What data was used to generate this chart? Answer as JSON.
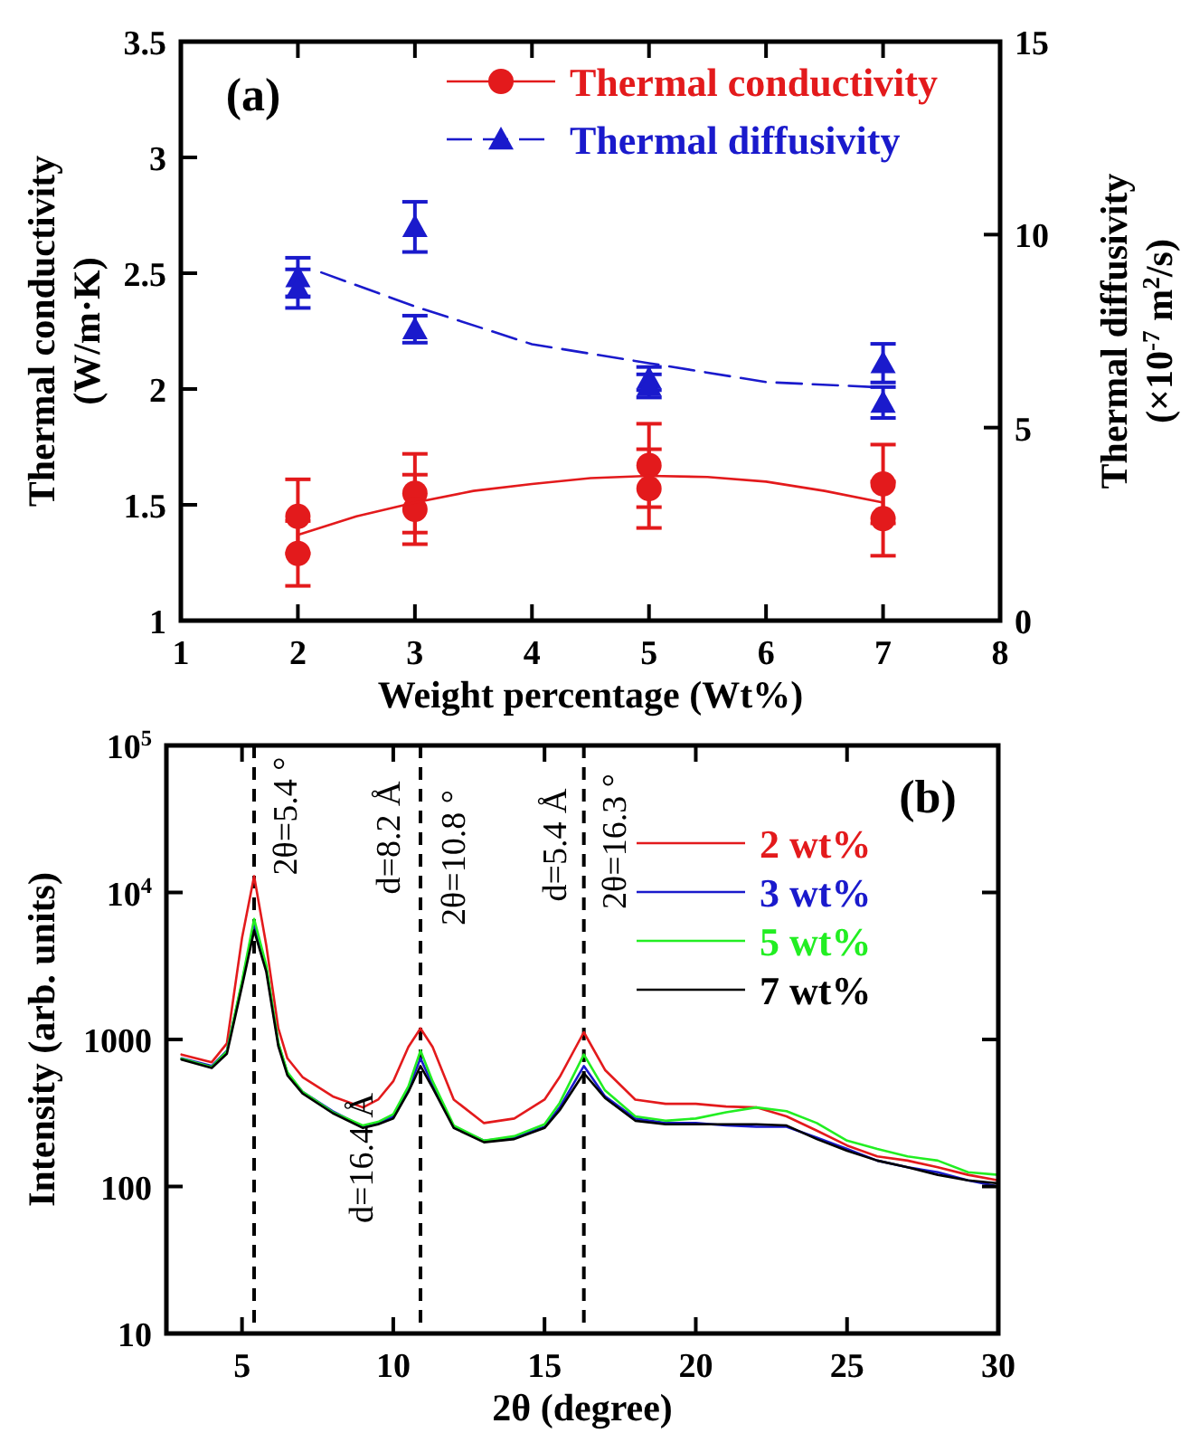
{
  "chart_data": [
    {
      "type": "scatter",
      "xlabel": "Weight percentage (Wt%)",
      "ylabel": "Thermal conductivity (W/m·K)",
      "y2label": "Thermal diffusivity (×10$^{-7}$ m$^{2}$/s)",
      "xlim": [
        1,
        8
      ],
      "xticks": [
        1,
        2,
        3,
        4,
        5,
        6,
        7,
        8
      ],
      "ylim": [
        1,
        3.5
      ],
      "yticks": [
        1,
        1.5,
        2,
        2.5,
        3,
        3.5
      ],
      "y2lim": [
        0,
        15
      ],
      "y2ticks": [
        0,
        5,
        10,
        15
      ],
      "legend": "top right",
      "grid": false,
      "annotations": [
        "(a)"
      ],
      "series": [
        {
          "name": "Thermal conductivity",
          "marker": "circle",
          "color": "#e31a1c",
          "x": [
            2,
            2,
            3,
            3,
            5,
            5,
            7,
            7
          ],
          "values": [
            1.45,
            1.29,
            1.55,
            1.48,
            1.67,
            1.57,
            1.59,
            1.44
          ],
          "errors": [
            0.16,
            0.14,
            0.17,
            0.15,
            0.18,
            0.17,
            0.17,
            0.16
          ]
        },
        {
          "type": "line",
          "marker": "none",
          "line_style": "solid",
          "color": "#e31a1c",
          "x": [
            2,
            2.5,
            3,
            3.5,
            4,
            4.5,
            5,
            5.5,
            6,
            6.5,
            7
          ],
          "values": [
            1.37,
            1.45,
            1.51,
            1.56,
            1.59,
            1.615,
            1.625,
            1.62,
            1.6,
            1.56,
            1.51
          ]
        },
        {
          "name": "Thermal diffusivity",
          "marker": "triangle",
          "axis": "y2",
          "color": "#1a1acc",
          "x": [
            2,
            2,
            3,
            3,
            5,
            5,
            7,
            7
          ],
          "values": [
            8.9,
            8.6,
            10.2,
            7.55,
            6.27,
            6.08,
            6.67,
            5.65
          ],
          "errors": [
            0.5,
            0.5,
            0.65,
            0.35,
            0.3,
            0.3,
            0.5,
            0.4
          ]
        },
        {
          "type": "line",
          "marker": "none",
          "line_style": "dashed",
          "axis": "y2",
          "color": "#1a1acc",
          "x": [
            2.2,
            3,
            4,
            5,
            6,
            7
          ],
          "values": [
            9.02,
            8.14,
            7.16,
            6.67,
            6.18,
            6.04
          ]
        }
      ]
    },
    {
      "type": "line",
      "xlabel": "2θ (degree)",
      "ylabel": "Intensity (arb. units)",
      "log": "y",
      "xlim": [
        2.5,
        30
      ],
      "xticks": [
        5,
        10,
        15,
        20,
        25,
        30
      ],
      "ylim": [
        10,
        100000
      ],
      "yticks": [
        10,
        100,
        1000,
        {
          "value": 10000,
          "label": "10$^{4}$"
        },
        {
          "value": 100000,
          "label": "10$^{5}$"
        }
      ],
      "legend": "top right",
      "grid": false,
      "marker": "none",
      "line_style": "solid",
      "ref_lines": [
        {
          "axis": "x",
          "value": 5.4,
          "line_style": "dashed",
          "color": "#000000"
        },
        {
          "axis": "x",
          "value": 10.9,
          "line_style": "dashed",
          "color": "#000000"
        },
        {
          "axis": "x",
          "value": 16.3,
          "line_style": "dashed",
          "color": "#000000"
        }
      ],
      "annotations": [
        "(b)",
        "2θ=5.4 °",
        "d=8.2 Å",
        "2θ=10.8 °",
        "d=5.4 Å",
        "2θ=16.3 °",
        "d=16.4 Å"
      ],
      "x": [
        3,
        4,
        4.5,
        5,
        5.4,
        5.8,
        6.2,
        6.5,
        7,
        8,
        9,
        9.5,
        10,
        10.5,
        10.9,
        11.3,
        12,
        13,
        14,
        15,
        15.5,
        16.3,
        17,
        18,
        19,
        20,
        21,
        22,
        23,
        24,
        25,
        26,
        27,
        28,
        29,
        30
      ],
      "series": [
        {
          "name": "2 wt%",
          "color": "#e31a1c",
          "values": [
            790,
            700,
            940,
            4900,
            12900,
            4400,
            1190,
            745,
            555,
            410,
            345,
            390,
            520,
            890,
            1190,
            890,
            390,
            270,
            290,
            390,
            555,
            1120,
            620,
            390,
            365,
            365,
            350,
            345,
            300,
            240,
            190,
            160,
            150,
            135,
            120,
            110
          ]
        },
        {
          "name": "3 wt%",
          "color": "#1a1acc",
          "values": [
            745,
            660,
            840,
            2420,
            6200,
            3070,
            940,
            590,
            440,
            325,
            255,
            270,
            300,
            460,
            745,
            490,
            255,
            205,
            215,
            255,
            345,
            660,
            410,
            290,
            270,
            270,
            260,
            255,
            255,
            215,
            180,
            150,
            135,
            125,
            110,
            100
          ]
        },
        {
          "name": "5 wt%",
          "color": "#22ee22",
          "values": [
            740,
            650,
            830,
            2500,
            6600,
            3200,
            950,
            600,
            440,
            320,
            260,
            275,
            310,
            480,
            840,
            520,
            260,
            205,
            220,
            265,
            370,
            790,
            450,
            300,
            280,
            290,
            320,
            345,
            325,
            270,
            205,
            180,
            160,
            150,
            125,
            120
          ]
        },
        {
          "name": "7 wt%",
          "color": "#000000",
          "values": [
            730,
            640,
            800,
            2300,
            5500,
            2900,
            900,
            570,
            430,
            315,
            250,
            265,
            290,
            440,
            660,
            470,
            250,
            200,
            210,
            250,
            330,
            590,
            400,
            280,
            265,
            265,
            265,
            265,
            260,
            210,
            175,
            150,
            135,
            120,
            110,
            105
          ]
        }
      ]
    }
  ]
}
